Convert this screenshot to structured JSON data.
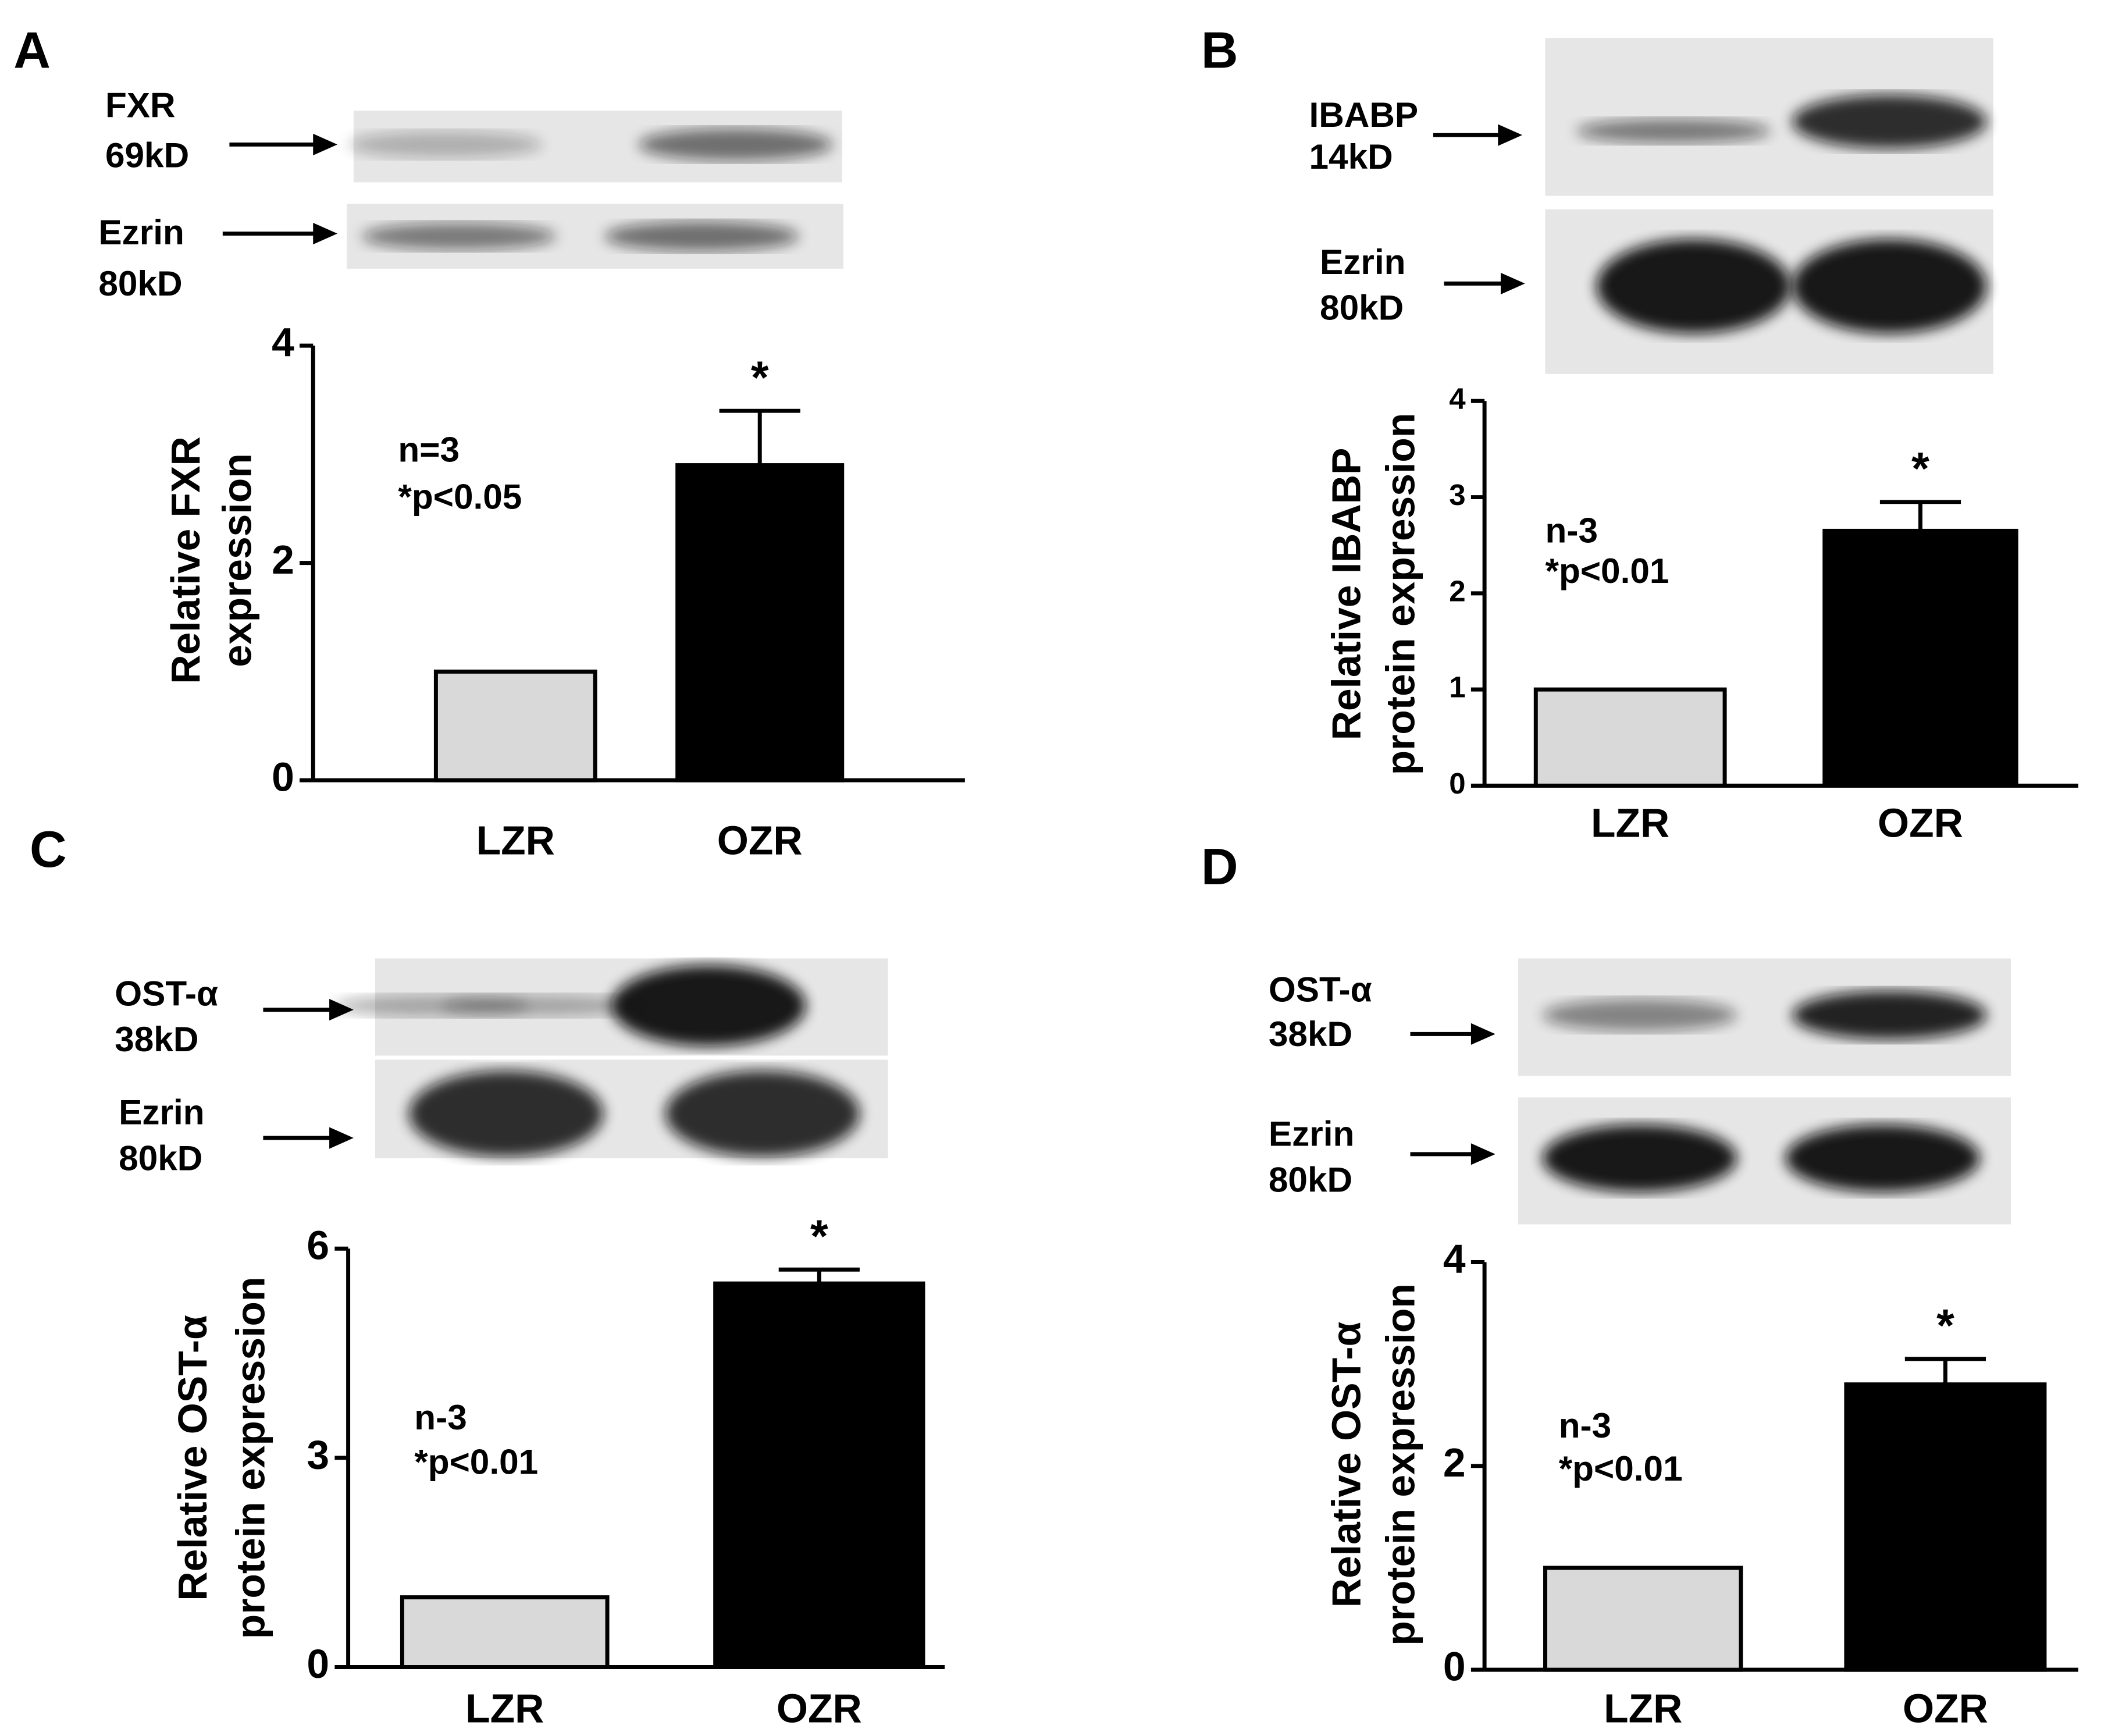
{
  "chart_data": [
    {
      "type": "bar",
      "panel": "A",
      "ylabel": [
        "Relative FXR",
        "expression"
      ],
      "categories": [
        "LZR",
        "OZR"
      ],
      "values": [
        1,
        2.9
      ],
      "errors": [
        0,
        0.5
      ],
      "colors": [
        "#d9d9d9",
        "#000000"
      ],
      "significance": "*",
      "annotations": [
        "n=3",
        "*p<0.05"
      ],
      "ylim": [
        0,
        4
      ],
      "yticks": [
        0,
        2,
        4
      ],
      "blots": [
        {
          "protein": "FXR",
          "size": "69kD"
        },
        {
          "protein": "Ezrin",
          "size": "80kD"
        }
      ]
    },
    {
      "type": "bar",
      "panel": "B",
      "ylabel": [
        "Relative IBABP",
        "protein expression"
      ],
      "categories": [
        "LZR",
        "OZR"
      ],
      "values": [
        1,
        2.65
      ],
      "errors": [
        0,
        0.3
      ],
      "colors": [
        "#d9d9d9",
        "#000000"
      ],
      "significance": "*",
      "annotations": [
        "n-3",
        "*p<0.01"
      ],
      "ylim": [
        0,
        4
      ],
      "yticks": [
        0,
        1,
        2,
        3,
        4
      ],
      "blots": [
        {
          "protein": "IBABP",
          "size": "14kD"
        },
        {
          "protein": "Ezrin",
          "size": "80kD"
        }
      ]
    },
    {
      "type": "bar",
      "panel": "C",
      "ylabel": [
        "Relative OST-α",
        "protein expression"
      ],
      "categories": [
        "LZR",
        "OZR"
      ],
      "values": [
        1,
        5.5
      ],
      "errors": [
        0,
        0.2
      ],
      "colors": [
        "#d9d9d9",
        "#000000"
      ],
      "significance": "*",
      "annotations": [
        "n-3",
        "*p<0.01"
      ],
      "ylim": [
        0,
        6
      ],
      "yticks": [
        0,
        3,
        6
      ],
      "blots": [
        {
          "protein": "OST-α",
          "size": "38kD"
        },
        {
          "protein": "Ezrin",
          "size": "80kD"
        }
      ]
    },
    {
      "type": "bar",
      "panel": "D",
      "ylabel": [
        "Relative OST-α",
        "protein expression"
      ],
      "categories": [
        "LZR",
        "OZR"
      ],
      "values": [
        1,
        2.8
      ],
      "errors": [
        0,
        0.25
      ],
      "colors": [
        "#d9d9d9",
        "#000000"
      ],
      "significance": "*",
      "annotations": [
        "n-3",
        "*p<0.01"
      ],
      "ylim": [
        0,
        4
      ],
      "yticks": [
        0,
        2,
        4
      ],
      "blots": [
        {
          "protein": "OST-α",
          "size": "38kD"
        },
        {
          "protein": "Ezrin",
          "size": "80kD"
        }
      ]
    }
  ]
}
